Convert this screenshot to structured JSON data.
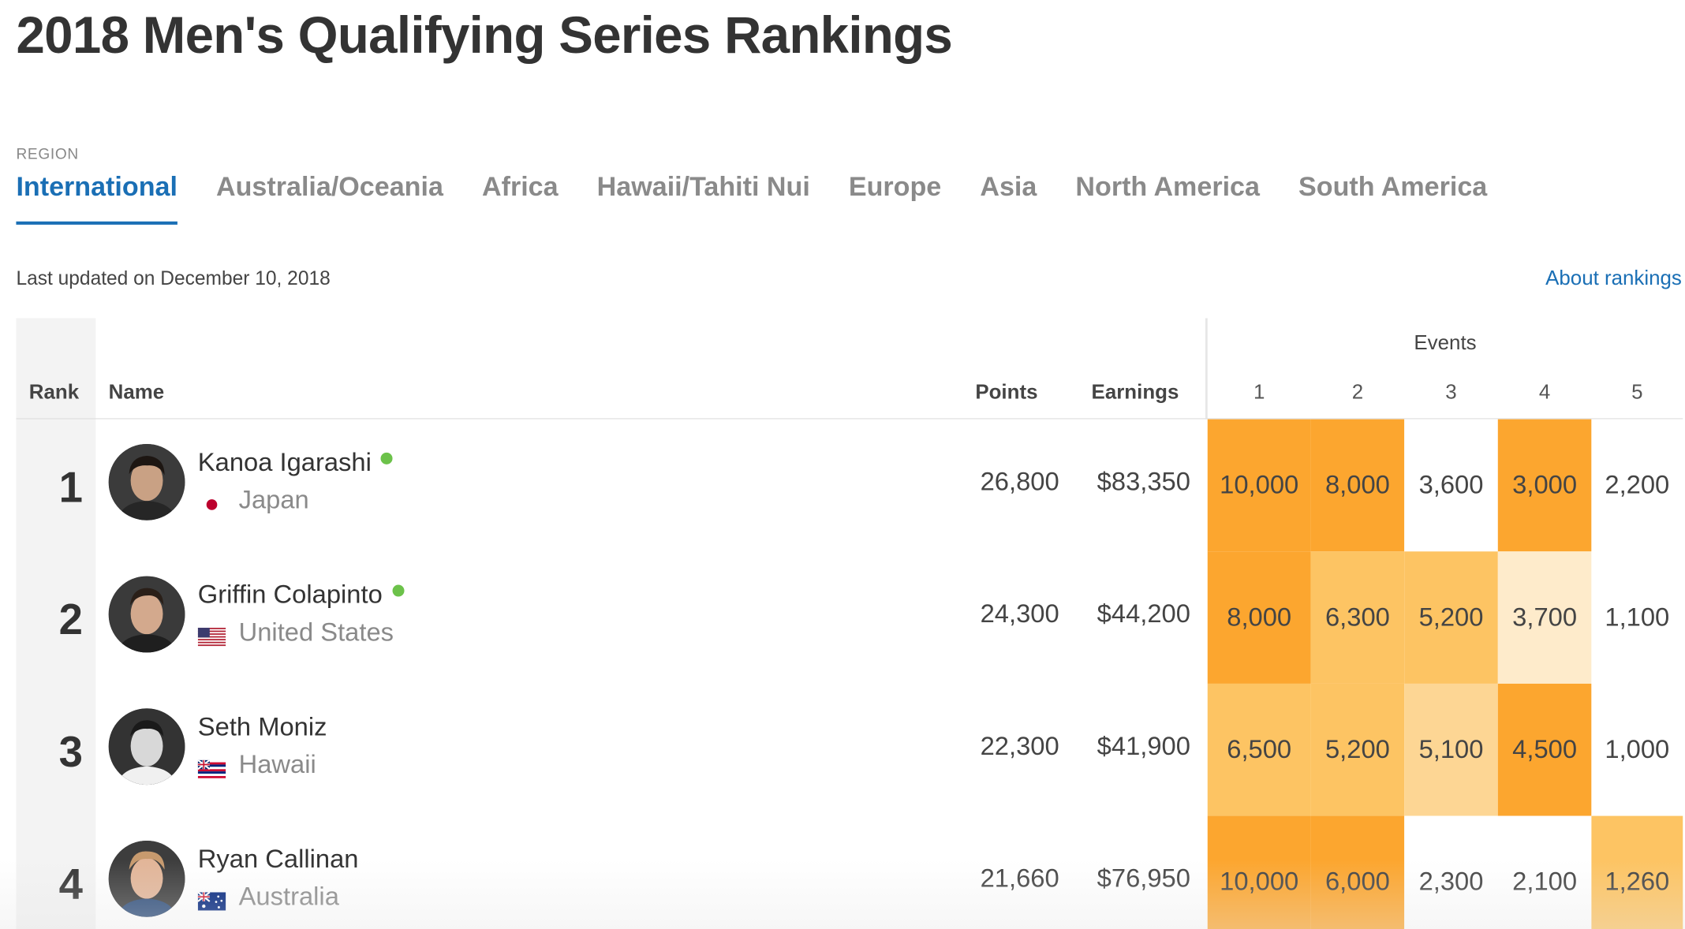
{
  "page_title": "2018 Men's Qualifying Series Rankings",
  "region_label": "REGION",
  "tabs": [
    {
      "label": "International",
      "active": true
    },
    {
      "label": "Australia/Oceania",
      "active": false
    },
    {
      "label": "Africa",
      "active": false
    },
    {
      "label": "Hawaii/Tahiti Nui",
      "active": false
    },
    {
      "label": "Europe",
      "active": false
    },
    {
      "label": "Asia",
      "active": false
    },
    {
      "label": "North America",
      "active": false
    },
    {
      "label": "South America",
      "active": false
    }
  ],
  "last_updated": "Last updated on December 10, 2018",
  "about_link": "About rankings",
  "table": {
    "headers": {
      "rank": "Rank",
      "name": "Name",
      "points": "Points",
      "earnings": "Earnings",
      "events": "Events",
      "event_numbers": [
        "1",
        "2",
        "3",
        "4",
        "5"
      ]
    },
    "rows": [
      {
        "rank": "1",
        "name": "Kanoa Igarashi",
        "online": true,
        "country": "Japan",
        "flag": "japan-flag",
        "points": "26,800",
        "earnings": "$83,350",
        "events": [
          "10,000",
          "8,000",
          "3,600",
          "3,000",
          "2,200"
        ],
        "event_values": [
          10000,
          8000,
          3600,
          3000,
          2200
        ]
      },
      {
        "rank": "2",
        "name": "Griffin Colapinto",
        "online": true,
        "country": "United States",
        "flag": "usa-flag",
        "points": "24,300",
        "earnings": "$44,200",
        "events": [
          "8,000",
          "6,300",
          "5,200",
          "3,700",
          "1,100"
        ],
        "event_values": [
          8000,
          6300,
          5200,
          3700,
          1100
        ]
      },
      {
        "rank": "3",
        "name": "Seth Moniz",
        "online": false,
        "country": "Hawaii",
        "flag": "hawaii-flag",
        "points": "22,300",
        "earnings": "$41,900",
        "events": [
          "6,500",
          "5,200",
          "5,100",
          "4,500",
          "1,000"
        ],
        "event_values": [
          6500,
          5200,
          5100,
          4500,
          1000
        ]
      },
      {
        "rank": "4",
        "name": "Ryan Callinan",
        "online": false,
        "country": "Australia",
        "flag": "australia-flag",
        "points": "21,660",
        "earnings": "$76,950",
        "events": [
          "10,000",
          "6,000",
          "2,300",
          "2,100",
          "1,260"
        ],
        "event_values": [
          10000,
          6000,
          2300,
          2100,
          1260
        ]
      }
    ]
  },
  "colors": {
    "accent": "#1a6fb5",
    "online": "#6cc24a",
    "heat_strong": "#fca62f",
    "heat_medium": "#fdc463",
    "heat_light": "#fdd694",
    "heat_pale": "#feebcb",
    "heat_none": "#ffffff"
  },
  "cell_heat": [
    [
      "heat_strong",
      "heat_strong",
      "heat_none",
      "heat_strong",
      "heat_none"
    ],
    [
      "heat_strong",
      "heat_medium",
      "heat_medium",
      "heat_pale",
      "heat_none"
    ],
    [
      "heat_medium",
      "heat_medium",
      "heat_light",
      "heat_strong",
      "heat_none"
    ],
    [
      "heat_strong",
      "heat_strong",
      "heat_none",
      "heat_none",
      "heat_medium"
    ]
  ]
}
